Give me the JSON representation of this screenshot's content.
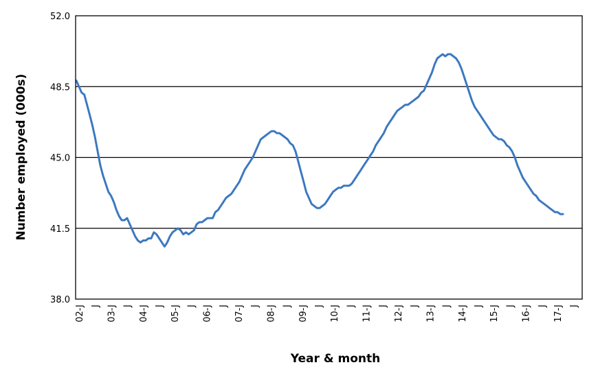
{
  "chart_data": {
    "type": "line",
    "title": "",
    "xlabel": "Year & month",
    "ylabel": "Number employed (000s)",
    "ylim": [
      38.0,
      52.0
    ],
    "y_ticks": [
      "38.0",
      "41.5",
      "45.0",
      "48.5",
      "52.0"
    ],
    "y_tick_values": [
      38.0,
      41.5,
      45.0,
      48.5,
      52.0
    ],
    "gridlines": "horizontal",
    "x_tick_labels": [
      "02-J",
      "J",
      "03-J",
      "J",
      "04-J",
      "J",
      "05-J",
      "J",
      "06-J",
      "J",
      "07-J",
      "J",
      "08-J",
      "J",
      "09-J",
      "J",
      "10-J",
      "J",
      "11-J",
      "J",
      "12-J",
      "J",
      "13-J",
      "J",
      "14-J",
      "J",
      "15-J",
      "J",
      "16-J",
      "J",
      "17-J",
      "J"
    ],
    "line_color": "#3c78c0",
    "series": [
      {
        "x": [
          0,
          1,
          2,
          3,
          4,
          5,
          6,
          7,
          8,
          9,
          10,
          11,
          12,
          13,
          14,
          15,
          16,
          17,
          18,
          19,
          20,
          21,
          22,
          23,
          24,
          25,
          26,
          27,
          28,
          29,
          30,
          31,
          32,
          33,
          34,
          35,
          36,
          37,
          38,
          39,
          40,
          41,
          42,
          43,
          44,
          45,
          46,
          47,
          48,
          49,
          50,
          51,
          52,
          53,
          54,
          55,
          56,
          57,
          58,
          59,
          60,
          61,
          62,
          63,
          64,
          65,
          66,
          67,
          68,
          69,
          70,
          71,
          72,
          73,
          74,
          75,
          76,
          77,
          78,
          79,
          80,
          81,
          82,
          83,
          84,
          85,
          86,
          87,
          88,
          89,
          90,
          91,
          92,
          93,
          94,
          95,
          96,
          97,
          98,
          99,
          100,
          101,
          102,
          103,
          104,
          105,
          106,
          107,
          108,
          109,
          110,
          111,
          112,
          113,
          114,
          115,
          116,
          117,
          118,
          119,
          120,
          121,
          122,
          123,
          124,
          125,
          126,
          127,
          128,
          129,
          130,
          131,
          132,
          133,
          134,
          135,
          136,
          137,
          138,
          139,
          140,
          141,
          142,
          143,
          144,
          145,
          146,
          147,
          148,
          149,
          150,
          151,
          152,
          153,
          154,
          155,
          156,
          157,
          158,
          159,
          160,
          161,
          162,
          163,
          164,
          165,
          166,
          167,
          168,
          169,
          170,
          171,
          172,
          173,
          174,
          175,
          176,
          177,
          178,
          179,
          180,
          181,
          182
        ],
        "values": [
          48.8,
          48.5,
          48.2,
          48.1,
          47.6,
          47.1,
          46.6,
          46.0,
          45.3,
          44.6,
          44.1,
          43.7,
          43.3,
          43.1,
          42.8,
          42.4,
          42.1,
          41.9,
          41.9,
          42.0,
          41.7,
          41.4,
          41.1,
          40.9,
          40.8,
          40.9,
          40.9,
          41.0,
          41.0,
          41.3,
          41.2,
          41.0,
          40.8,
          40.6,
          40.8,
          41.1,
          41.3,
          41.4,
          41.5,
          41.4,
          41.2,
          41.3,
          41.2,
          41.3,
          41.4,
          41.7,
          41.8,
          41.8,
          41.9,
          42.0,
          42.0,
          42.0,
          42.3,
          42.4,
          42.6,
          42.8,
          43.0,
          43.1,
          43.2,
          43.4,
          43.6,
          43.8,
          44.1,
          44.4,
          44.6,
          44.8,
          45.0,
          45.3,
          45.6,
          45.9,
          46.0,
          46.1,
          46.2,
          46.3,
          46.3,
          46.2,
          46.2,
          46.1,
          46.0,
          45.9,
          45.7,
          45.6,
          45.3,
          44.8,
          44.3,
          43.8,
          43.3,
          43.0,
          42.7,
          42.6,
          42.5,
          42.5,
          42.6,
          42.7,
          42.9,
          43.1,
          43.3,
          43.4,
          43.5,
          43.5,
          43.6,
          43.6,
          43.6,
          43.7,
          43.9,
          44.1,
          44.3,
          44.5,
          44.7,
          44.9,
          45.1,
          45.3,
          45.6,
          45.8,
          46.0,
          46.2,
          46.5,
          46.7,
          46.9,
          47.1,
          47.3,
          47.4,
          47.5,
          47.6,
          47.6,
          47.7,
          47.8,
          47.9,
          48.0,
          48.2,
          48.3,
          48.6,
          48.9,
          49.2,
          49.6,
          49.9,
          50.0,
          50.1,
          50.0,
          50.1,
          50.1,
          50.0,
          49.9,
          49.7,
          49.4,
          49.0,
          48.6,
          48.2,
          47.8,
          47.5,
          47.3,
          47.1,
          46.9,
          46.7,
          46.5,
          46.3,
          46.1,
          46.0,
          45.9,
          45.9,
          45.8,
          45.6,
          45.5,
          45.3,
          45.0,
          44.6,
          44.3,
          44.0,
          43.8,
          43.6,
          43.4,
          43.2,
          43.1,
          42.9,
          42.8,
          42.7,
          42.6,
          42.5,
          42.4,
          42.3,
          42.3,
          42.2,
          42.2
        ]
      }
    ]
  }
}
